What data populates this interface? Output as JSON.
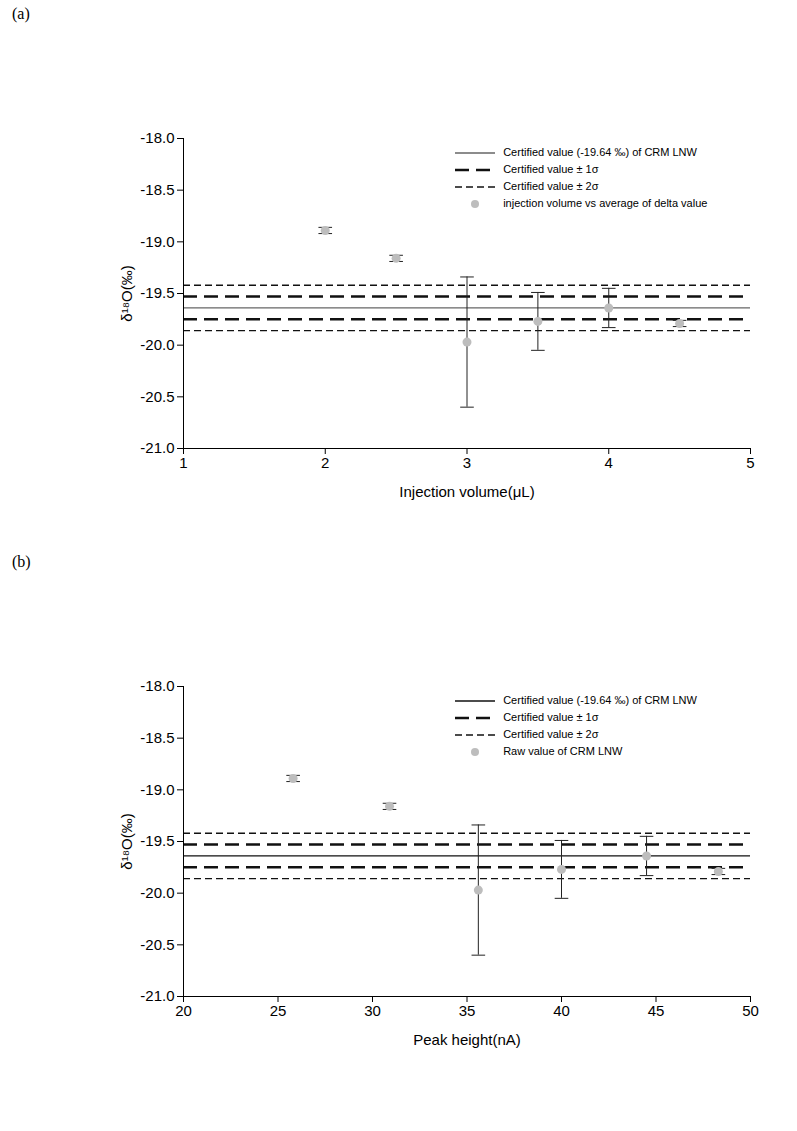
{
  "chart_data": [
    {
      "type": "scatter",
      "title": "(a)",
      "x_label": "Injection volume(μL)",
      "y_label": "δ¹⁸O(‰)",
      "xlim": [
        1,
        5
      ],
      "xticks": [
        1,
        2,
        3,
        4,
        5
      ],
      "ylim": [
        -21,
        -18
      ],
      "yticks": [
        {
          "value": -18,
          "label": "-18.0"
        },
        -18.5,
        {
          "value": -19,
          "label": "-19.0"
        },
        -19.5,
        {
          "value": -20,
          "label": "-20.0"
        },
        -20.5,
        {
          "value": -21,
          "label": "-21.0"
        }
      ],
      "legend": "upper right",
      "reference_lines": [
        {
          "name": "Certified value (-19.64 ‰) of CRM LNW",
          "values": [
            -19.64
          ],
          "line_style": "solid",
          "color": "#666666"
        },
        {
          "name": "Certified value ± 1σ",
          "values": [
            -19.53,
            -19.75
          ],
          "line_style": "long-dash",
          "color": "#111111"
        },
        {
          "name": "Certified value ± 2σ",
          "values": [
            -19.42,
            -19.86
          ],
          "line_style": "dashed",
          "color": "#111111"
        }
      ],
      "series": [
        {
          "name": "injection volume vs average of delta value",
          "color": "#bdbdbd",
          "marker": "circle",
          "x": [
            2,
            2.5,
            3,
            3.5,
            4,
            4.5
          ],
          "values": [
            -18.89,
            -19.16,
            -19.97,
            -19.77,
            -19.64,
            -19.79
          ],
          "errors": [
            0.03,
            0.03,
            0.63,
            0.28,
            0.19,
            0.03
          ]
        }
      ]
    },
    {
      "type": "scatter",
      "title": "(b)",
      "x_label": "Peak height(nA)",
      "y_label": "δ¹⁸O(‰)",
      "xlim": [
        20,
        50
      ],
      "xticks": [
        20,
        25,
        30,
        35,
        40,
        45,
        50
      ],
      "ylim": [
        -21,
        -18
      ],
      "yticks": [
        {
          "value": -18,
          "label": "-18.0"
        },
        -18.5,
        {
          "value": -19,
          "label": "-19.0"
        },
        -19.5,
        {
          "value": -20,
          "label": "-20.0"
        },
        -20.5,
        {
          "value": -21,
          "label": "-21.0"
        }
      ],
      "legend": "upper right",
      "reference_lines": [
        {
          "name": "Certified value (-19.64 ‰) of CRM LNW",
          "values": [
            -19.64
          ],
          "line_style": "solid",
          "color": "#111111"
        },
        {
          "name": "Certified value ± 1σ",
          "values": [
            -19.53,
            -19.75
          ],
          "line_style": "long-dash",
          "color": "#111111"
        },
        {
          "name": "Certified value ± 2σ",
          "values": [
            -19.42,
            -19.86
          ],
          "line_style": "dashed",
          "color": "#111111"
        }
      ],
      "series": [
        {
          "name": "Raw value of CRM LNW",
          "color": "#bdbdbd",
          "marker": "circle",
          "x": [
            25.8,
            30.9,
            35.6,
            40.0,
            44.5,
            48.3
          ],
          "values": [
            -18.89,
            -19.16,
            -19.97,
            -19.77,
            -19.64,
            -19.79
          ],
          "errors": [
            0.03,
            0.03,
            0.63,
            0.28,
            0.19,
            0.03
          ]
        }
      ]
    }
  ]
}
